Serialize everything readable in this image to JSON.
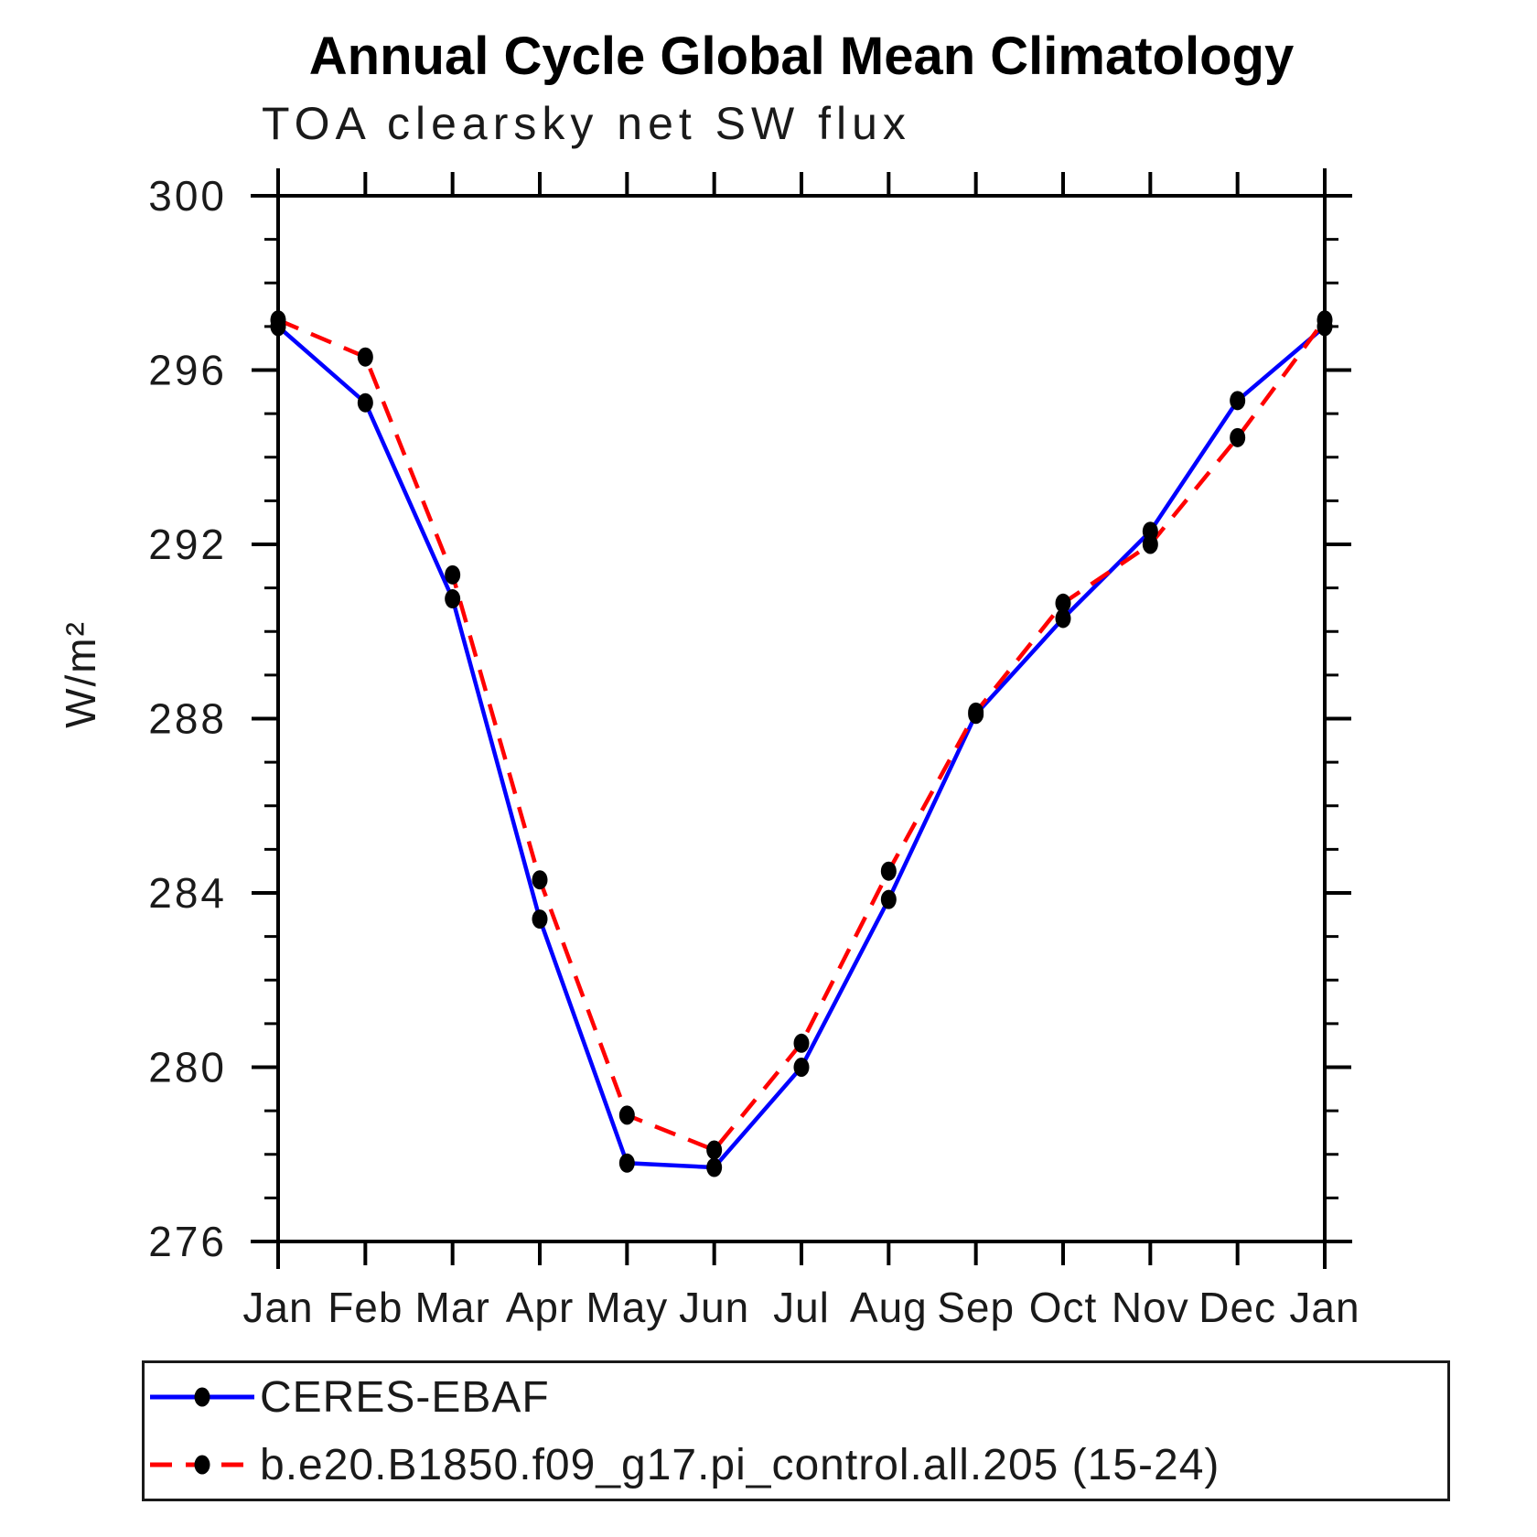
{
  "chart_data": {
    "type": "line",
    "title": "Annual Cycle Global Mean Climatology",
    "subtitle": "TOA clearsky net SW flux",
    "ylabel": "W/m²",
    "xlabel": "",
    "categories": [
      "Jan",
      "Feb",
      "Mar",
      "Apr",
      "May",
      "Jun",
      "Jul",
      "Aug",
      "Sep",
      "Oct",
      "Nov",
      "Dec",
      "Jan"
    ],
    "ylim": [
      276,
      300
    ],
    "y_major_ticks": [
      276,
      280,
      284,
      288,
      292,
      296,
      300
    ],
    "y_minor_step": 1,
    "grid": false,
    "legend_position": "bottom-left-box",
    "marker_color": "#000000",
    "axis_color": "#000000",
    "series": [
      {
        "name": "CERES-EBAF",
        "color": "#0000ff",
        "style": "solid",
        "marker": "filled-dot",
        "values": [
          297.0,
          295.25,
          290.75,
          283.4,
          277.8,
          277.7,
          280.0,
          283.85,
          288.1,
          290.3,
          292.3,
          295.3,
          297.0
        ]
      },
      {
        "name": "b.e20.B1850.f09_g17.pi_control.all.205 (15-24)",
        "color": "#ff0000",
        "style": "dashed",
        "marker": "filled-dot",
        "values": [
          297.15,
          296.3,
          291.3,
          284.3,
          278.9,
          278.1,
          280.55,
          284.5,
          288.15,
          290.65,
          292.0,
          294.45,
          297.15
        ]
      }
    ]
  }
}
